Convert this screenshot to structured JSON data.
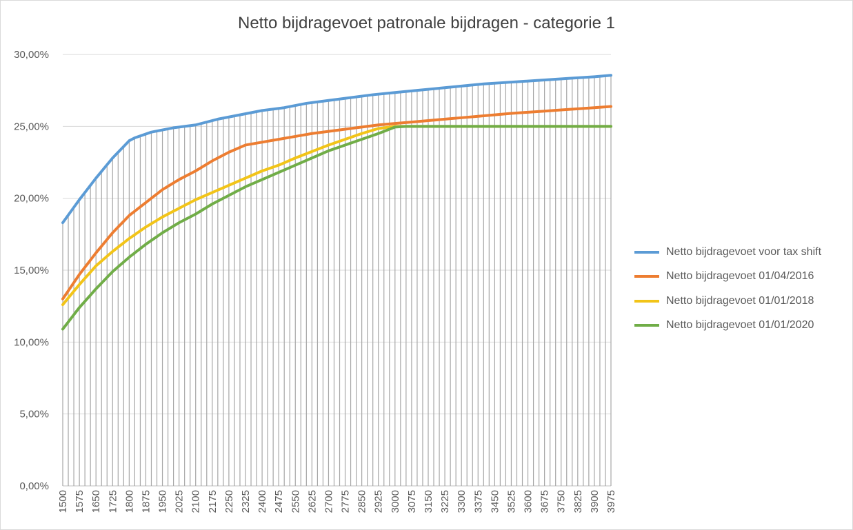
{
  "chart_data": {
    "type": "line",
    "title": "Netto bijdragevoet patronale bijdragen - categorie 1",
    "xlabel": "",
    "ylabel": "",
    "x_start": 1500,
    "x_step": 25,
    "x_count": 100,
    "x_tick_labels": [
      "1500",
      "1575",
      "1650",
      "1725",
      "1800",
      "1875",
      "1950",
      "2025",
      "2100",
      "2175",
      "2250",
      "2325",
      "2400",
      "2475",
      "2550",
      "2625",
      "2700",
      "2775",
      "2850",
      "2925",
      "3000",
      "3075",
      "3150",
      "3225",
      "3300",
      "3375",
      "3450",
      "3525",
      "3600",
      "3675",
      "3750",
      "3825",
      "3900",
      "3975"
    ],
    "y_tick_labels": [
      "0,00%",
      "5,00%",
      "10,00%",
      "15,00%",
      "20,00%",
      "25,00%",
      "30,00%"
    ],
    "ylim": [
      0,
      30
    ],
    "y_unit": "%",
    "dropline_color": "#a6a6a6",
    "grid_color": "#d9d9d9",
    "legend_position": "right",
    "series": [
      {
        "name": "Netto bijdragevoet voor tax shift",
        "color": "#5b9bd5",
        "points": [
          [
            1500,
            18.3
          ],
          [
            1575,
            19.9
          ],
          [
            1650,
            21.4
          ],
          [
            1725,
            22.8
          ],
          [
            1800,
            24.0
          ],
          [
            1825,
            24.2
          ],
          [
            1900,
            24.6
          ],
          [
            2000,
            24.9
          ],
          [
            2100,
            25.1
          ],
          [
            2200,
            25.5
          ],
          [
            2300,
            25.8
          ],
          [
            2400,
            26.1
          ],
          [
            2500,
            26.3
          ],
          [
            2600,
            26.6
          ],
          [
            2700,
            26.8
          ],
          [
            2800,
            27.0
          ],
          [
            2900,
            27.2
          ],
          [
            3000,
            27.35
          ],
          [
            3100,
            27.5
          ],
          [
            3200,
            27.65
          ],
          [
            3300,
            27.8
          ],
          [
            3400,
            27.95
          ],
          [
            3500,
            28.05
          ],
          [
            3600,
            28.15
          ],
          [
            3700,
            28.25
          ],
          [
            3800,
            28.35
          ],
          [
            3900,
            28.45
          ],
          [
            3975,
            28.55
          ]
        ]
      },
      {
        "name": "Netto bijdragevoet 01/04/2016",
        "color": "#ed7d31",
        "points": [
          [
            1500,
            13.0
          ],
          [
            1575,
            14.7
          ],
          [
            1650,
            16.2
          ],
          [
            1725,
            17.6
          ],
          [
            1800,
            18.8
          ],
          [
            1875,
            19.7
          ],
          [
            1950,
            20.6
          ],
          [
            2025,
            21.3
          ],
          [
            2100,
            21.9
          ],
          [
            2175,
            22.6
          ],
          [
            2250,
            23.2
          ],
          [
            2325,
            23.7
          ],
          [
            2400,
            23.9
          ],
          [
            2475,
            24.1
          ],
          [
            2550,
            24.3
          ],
          [
            2625,
            24.5
          ],
          [
            2700,
            24.65
          ],
          [
            2775,
            24.8
          ],
          [
            2850,
            24.95
          ],
          [
            2925,
            25.1
          ],
          [
            3000,
            25.2
          ],
          [
            3075,
            25.3
          ],
          [
            3150,
            25.4
          ],
          [
            3225,
            25.5
          ],
          [
            3300,
            25.6
          ],
          [
            3375,
            25.7
          ],
          [
            3450,
            25.8
          ],
          [
            3525,
            25.9
          ],
          [
            3600,
            25.98
          ],
          [
            3675,
            26.06
          ],
          [
            3750,
            26.14
          ],
          [
            3825,
            26.22
          ],
          [
            3900,
            26.3
          ],
          [
            3975,
            26.38
          ]
        ]
      },
      {
        "name": "Netto bijdragevoet 01/01/2018",
        "color": "#f2c418",
        "points": [
          [
            1500,
            12.6
          ],
          [
            1575,
            14.0
          ],
          [
            1650,
            15.3
          ],
          [
            1725,
            16.3
          ],
          [
            1800,
            17.2
          ],
          [
            1875,
            18.0
          ],
          [
            1950,
            18.7
          ],
          [
            2025,
            19.3
          ],
          [
            2100,
            19.9
          ],
          [
            2175,
            20.4
          ],
          [
            2250,
            20.9
          ],
          [
            2325,
            21.4
          ],
          [
            2400,
            21.9
          ],
          [
            2475,
            22.3
          ],
          [
            2550,
            22.8
          ],
          [
            2625,
            23.25
          ],
          [
            2700,
            23.7
          ],
          [
            2775,
            24.1
          ],
          [
            2850,
            24.5
          ],
          [
            2925,
            24.85
          ],
          [
            3000,
            25.0
          ],
          [
            3975,
            25.0
          ]
        ]
      },
      {
        "name": "Netto bijdragevoet 01/01/2020",
        "color": "#70ad47",
        "points": [
          [
            1500,
            10.9
          ],
          [
            1575,
            12.4
          ],
          [
            1650,
            13.7
          ],
          [
            1725,
            14.9
          ],
          [
            1800,
            15.9
          ],
          [
            1875,
            16.8
          ],
          [
            1950,
            17.6
          ],
          [
            2025,
            18.3
          ],
          [
            2100,
            18.9
          ],
          [
            2175,
            19.6
          ],
          [
            2250,
            20.2
          ],
          [
            2325,
            20.8
          ],
          [
            2400,
            21.3
          ],
          [
            2475,
            21.8
          ],
          [
            2550,
            22.3
          ],
          [
            2625,
            22.8
          ],
          [
            2700,
            23.3
          ],
          [
            2775,
            23.7
          ],
          [
            2850,
            24.1
          ],
          [
            2925,
            24.5
          ],
          [
            3000,
            24.95
          ],
          [
            3050,
            25.0
          ],
          [
            3975,
            25.0
          ]
        ]
      }
    ]
  }
}
